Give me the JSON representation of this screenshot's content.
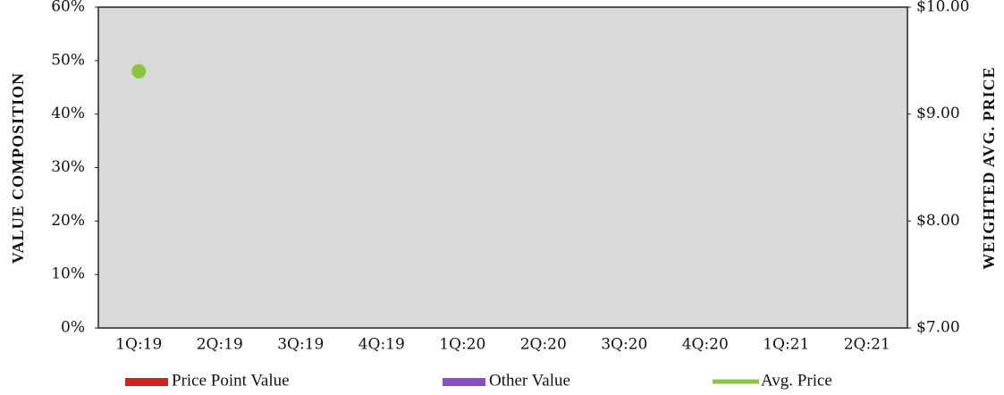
{
  "chart_data": {
    "type": "bar",
    "categories": [
      "1Q:19",
      "2Q:19",
      "3Q:19",
      "4Q:19",
      "1Q:20",
      "2Q:20",
      "3Q:20",
      "4Q:20",
      "1Q:21",
      "2Q:21"
    ],
    "series": [
      {
        "name": "Price Point Value",
        "color": "#d42020",
        "values": [
          null,
          null,
          null,
          null,
          null,
          null,
          null,
          null,
          null,
          null
        ]
      },
      {
        "name": "Other Value",
        "color": "#8a4fc8",
        "values": [
          null,
          null,
          null,
          null,
          null,
          null,
          null,
          null,
          null,
          null
        ]
      },
      {
        "name": "Avg. Price",
        "color": "#8cc63f",
        "axis": "y2",
        "values": [
          9.4,
          null,
          null,
          null,
          null,
          null,
          null,
          null,
          null,
          null
        ]
      }
    ],
    "ylabel": "VALUE COMPOSITION",
    "y2label": "WEIGHTED AVG. PRICE",
    "ylim": [
      0,
      60
    ],
    "yticks": [
      {
        "value": 0,
        "label": "0%"
      },
      {
        "value": 10,
        "label": "10%"
      },
      {
        "value": 20,
        "label": "20%"
      },
      {
        "value": 30,
        "label": "30%"
      },
      {
        "value": 40,
        "label": "40%"
      },
      {
        "value": 50,
        "label": "50%"
      },
      {
        "value": 60,
        "label": "60%"
      }
    ],
    "y2lim": [
      7,
      10
    ],
    "y2ticks": [
      {
        "value": 7,
        "label": "$7.00"
      },
      {
        "value": 8,
        "label": "$8.00"
      },
      {
        "value": 9,
        "label": "$9.00"
      },
      {
        "value": 10,
        "label": "$10.00"
      }
    ],
    "plot_background": "#d9d9d9",
    "legend": "bottom"
  }
}
